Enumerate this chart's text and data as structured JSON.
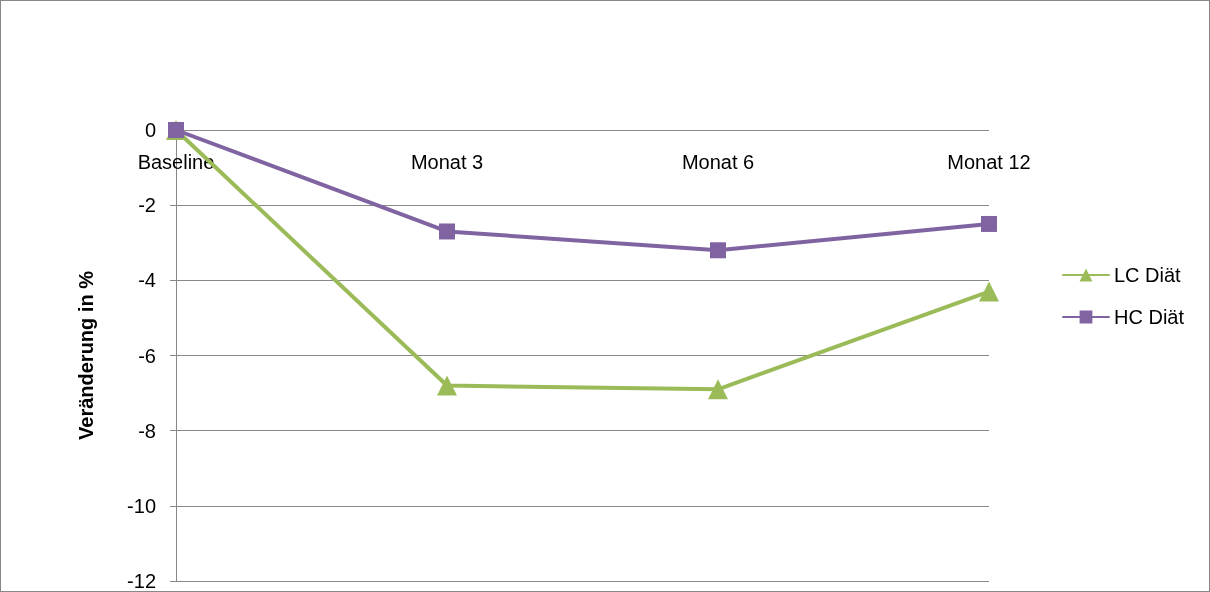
{
  "chart_data": {
    "type": "line",
    "ylabel": "Veränderung in %",
    "categories": [
      "Baseline",
      "Monat 3",
      "Monat 6",
      "Monat 12"
    ],
    "series": [
      {
        "name": "LC Diät",
        "color": "#9bbb59",
        "marker": "triangle",
        "values": [
          0,
          -6.8,
          -6.9,
          -4.3
        ]
      },
      {
        "name": "HC Diät",
        "color": "#8064a2",
        "marker": "square",
        "values": [
          0,
          -2.7,
          -3.2,
          -2.5
        ]
      }
    ],
    "ylim": [
      -12,
      0
    ],
    "yticks": [
      -12,
      -10,
      -8,
      -6,
      -4,
      -2,
      0
    ],
    "grid": "y",
    "legend": "right",
    "line_style": "solid"
  }
}
